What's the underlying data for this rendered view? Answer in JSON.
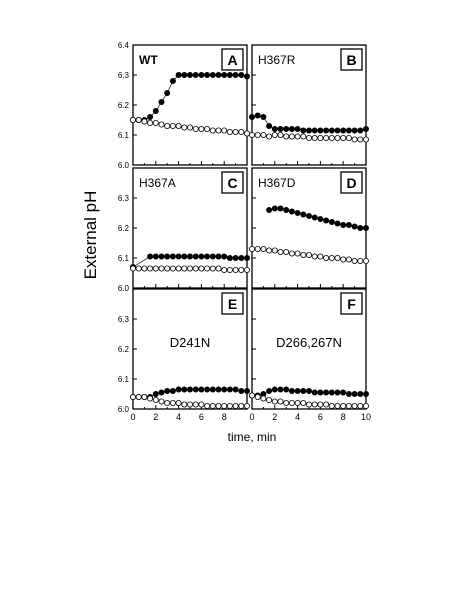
{
  "figure": {
    "ylabel": "External pH",
    "xlabel": "time, min"
  },
  "chart_data": [
    {
      "panel": "A",
      "label": "WT",
      "type": "scatter",
      "xlim": [
        0,
        10
      ],
      "ylim": [
        6.0,
        6.4
      ],
      "yticks": [
        "6.0",
        "6.1",
        "6.2",
        "6.3",
        "6.4"
      ],
      "series": [
        {
          "marker": "filled",
          "x": [
            0,
            0.5,
            1,
            1.5,
            2,
            2.5,
            3,
            3.5,
            4,
            4.5,
            5,
            5.5,
            6,
            6.5,
            7,
            7.5,
            8,
            8.5,
            9,
            9.5,
            10
          ],
          "y": [
            6.15,
            6.15,
            6.15,
            6.16,
            6.18,
            6.21,
            6.24,
            6.28,
            6.3,
            6.3,
            6.3,
            6.3,
            6.3,
            6.3,
            6.3,
            6.3,
            6.3,
            6.3,
            6.3,
            6.3,
            6.295
          ]
        },
        {
          "marker": "open",
          "x": [
            0,
            0.5,
            1,
            1.5,
            2,
            2.5,
            3,
            3.5,
            4,
            4.5,
            5,
            5.5,
            6,
            6.5,
            7,
            7.5,
            8,
            8.5,
            9,
            9.5,
            10
          ],
          "y": [
            6.15,
            6.15,
            6.145,
            6.14,
            6.14,
            6.135,
            6.13,
            6.13,
            6.13,
            6.125,
            6.125,
            6.12,
            6.12,
            6.12,
            6.115,
            6.115,
            6.115,
            6.11,
            6.11,
            6.11,
            6.105
          ]
        }
      ]
    },
    {
      "panel": "B",
      "label": "H367R",
      "type": "scatter",
      "xlim": [
        0,
        10
      ],
      "ylim": [
        6.0,
        6.4
      ],
      "series": [
        {
          "marker": "filled",
          "x": [
            0,
            0.5,
            1,
            1.5,
            2,
            2.5,
            3,
            3.5,
            4,
            4.5,
            5,
            5.5,
            6,
            6.5,
            7,
            7.5,
            8,
            8.5,
            9,
            9.5,
            10
          ],
          "y": [
            6.16,
            6.165,
            6.16,
            6.13,
            6.12,
            6.12,
            6.12,
            6.12,
            6.12,
            6.115,
            6.115,
            6.115,
            6.115,
            6.115,
            6.115,
            6.115,
            6.115,
            6.115,
            6.115,
            6.115,
            6.12
          ]
        },
        {
          "marker": "open",
          "x": [
            0,
            0.5,
            1,
            1.5,
            2,
            2.5,
            3,
            3.5,
            4,
            4.5,
            5,
            5.5,
            6,
            6.5,
            7,
            7.5,
            8,
            8.5,
            9,
            9.5,
            10
          ],
          "y": [
            6.1,
            6.1,
            6.1,
            6.095,
            6.1,
            6.1,
            6.095,
            6.095,
            6.095,
            6.095,
            6.09,
            6.09,
            6.09,
            6.09,
            6.09,
            6.09,
            6.09,
            6.09,
            6.085,
            6.085,
            6.085
          ]
        }
      ]
    },
    {
      "panel": "C",
      "label": "H367A",
      "type": "scatter",
      "xlim": [
        0,
        10
      ],
      "ylim": [
        6.0,
        6.4
      ],
      "yticks": [
        "6.0",
        "6.1",
        "6.2",
        "6.3"
      ],
      "series": [
        {
          "marker": "filled",
          "x": [
            0,
            1.5,
            2,
            2.5,
            3,
            3.5,
            4,
            4.5,
            5,
            5.5,
            6,
            6.5,
            7,
            7.5,
            8,
            8.5,
            9,
            9.5,
            10
          ],
          "y": [
            6.07,
            6.105,
            6.105,
            6.105,
            6.105,
            6.105,
            6.105,
            6.105,
            6.105,
            6.105,
            6.105,
            6.105,
            6.105,
            6.105,
            6.105,
            6.1,
            6.1,
            6.1,
            6.1
          ]
        },
        {
          "marker": "open",
          "x": [
            0,
            0.5,
            1,
            1.5,
            2,
            2.5,
            3,
            3.5,
            4,
            4.5,
            5,
            5.5,
            6,
            6.5,
            7,
            7.5,
            8,
            8.5,
            9,
            9.5,
            10
          ],
          "y": [
            6.065,
            6.065,
            6.065,
            6.065,
            6.065,
            6.065,
            6.065,
            6.065,
            6.065,
            6.065,
            6.065,
            6.065,
            6.065,
            6.065,
            6.065,
            6.065,
            6.06,
            6.06,
            6.06,
            6.06,
            6.06
          ]
        }
      ]
    },
    {
      "panel": "D",
      "label": "H367D",
      "type": "scatter",
      "xlim": [
        0,
        10
      ],
      "ylim": [
        6.0,
        6.4
      ],
      "series": [
        {
          "marker": "filled",
          "x": [
            1.5,
            2,
            2.5,
            3,
            3.5,
            4,
            4.5,
            5,
            5.5,
            6,
            6.5,
            7,
            7.5,
            8,
            8.5,
            9,
            9.5,
            10
          ],
          "y": [
            6.26,
            6.265,
            6.265,
            6.26,
            6.255,
            6.25,
            6.245,
            6.24,
            6.235,
            6.23,
            6.225,
            6.22,
            6.215,
            6.21,
            6.21,
            6.205,
            6.2,
            6.2
          ]
        },
        {
          "marker": "open",
          "x": [
            0,
            0.5,
            1,
            1.5,
            2,
            2.5,
            3,
            3.5,
            4,
            4.5,
            5,
            5.5,
            6,
            6.5,
            7,
            7.5,
            8,
            8.5,
            9,
            9.5,
            10
          ],
          "y": [
            6.13,
            6.13,
            6.13,
            6.125,
            6.125,
            6.12,
            6.12,
            6.115,
            6.115,
            6.11,
            6.11,
            6.105,
            6.105,
            6.1,
            6.1,
            6.1,
            6.095,
            6.095,
            6.09,
            6.09,
            6.09
          ]
        }
      ]
    },
    {
      "panel": "E",
      "label": "D241N",
      "type": "scatter",
      "xlim": [
        0,
        10
      ],
      "ylim": [
        6.0,
        6.4
      ],
      "yticks": [
        "6.0",
        "6.1",
        "6.2",
        "6.3"
      ],
      "xticks": [
        "0",
        "2",
        "4",
        "6",
        "8"
      ],
      "series": [
        {
          "marker": "filled",
          "x": [
            0,
            0.5,
            1,
            1.5,
            2,
            2.5,
            3,
            3.5,
            4,
            4.5,
            5,
            5.5,
            6,
            6.5,
            7,
            7.5,
            8,
            8.5,
            9,
            9.5,
            10
          ],
          "y": [
            6.04,
            6.04,
            6.04,
            6.04,
            6.05,
            6.055,
            6.06,
            6.06,
            6.065,
            6.065,
            6.065,
            6.065,
            6.065,
            6.065,
            6.065,
            6.065,
            6.065,
            6.065,
            6.065,
            6.06,
            6.06
          ]
        },
        {
          "marker": "open",
          "x": [
            0,
            0.5,
            1,
            1.5,
            2,
            2.5,
            3,
            3.5,
            4,
            4.5,
            5,
            5.5,
            6,
            6.5,
            7,
            7.5,
            8,
            8.5,
            9,
            9.5,
            10
          ],
          "y": [
            6.04,
            6.04,
            6.04,
            6.035,
            6.03,
            6.025,
            6.02,
            6.02,
            6.02,
            6.015,
            6.015,
            6.015,
            6.015,
            6.01,
            6.01,
            6.01,
            6.01,
            6.01,
            6.01,
            6.01,
            6.01
          ]
        }
      ]
    },
    {
      "panel": "F",
      "label": "D266,267N",
      "type": "scatter",
      "xlim": [
        0,
        10
      ],
      "ylim": [
        6.0,
        6.4
      ],
      "xticks": [
        "0",
        "2",
        "4",
        "6",
        "8",
        "10"
      ],
      "series": [
        {
          "marker": "filled",
          "x": [
            0,
            0.5,
            1,
            1.5,
            2,
            2.5,
            3,
            3.5,
            4,
            4.5,
            5,
            5.5,
            6,
            6.5,
            7,
            7.5,
            8,
            8.5,
            9,
            9.5,
            10
          ],
          "y": [
            6.045,
            6.045,
            6.05,
            6.06,
            6.065,
            6.065,
            6.065,
            6.06,
            6.06,
            6.06,
            6.06,
            6.055,
            6.055,
            6.055,
            6.055,
            6.055,
            6.055,
            6.05,
            6.05,
            6.05,
            6.05
          ]
        },
        {
          "marker": "open",
          "x": [
            0,
            0.5,
            1,
            1.5,
            2,
            2.5,
            3,
            3.5,
            4,
            4.5,
            5,
            5.5,
            6,
            6.5,
            7,
            7.5,
            8,
            8.5,
            9,
            9.5,
            10
          ],
          "y": [
            6.045,
            6.04,
            6.035,
            6.03,
            6.025,
            6.025,
            6.02,
            6.02,
            6.02,
            6.02,
            6.015,
            6.015,
            6.015,
            6.015,
            6.01,
            6.01,
            6.01,
            6.01,
            6.01,
            6.01,
            6.01
          ]
        }
      ]
    }
  ]
}
